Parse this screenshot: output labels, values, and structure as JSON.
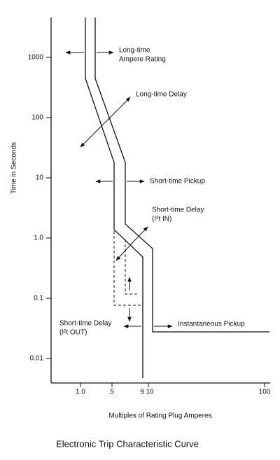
{
  "title": "Electronic Trip Characteristic Curve",
  "axes": {
    "y_label": "Time in Seconds",
    "x_label": "Multiples of Rating Plug Amperes",
    "y_ticks": [
      "1000",
      "100",
      "10",
      "1.0",
      "0.1",
      "0.01"
    ],
    "x_ticks": [
      "1.0",
      "5",
      "9",
      "10",
      "100"
    ]
  },
  "annotations": {
    "long_time_rating": [
      "Long-time",
      "Ampere Rating"
    ],
    "long_time_delay": "Long-time Delay",
    "short_time_pickup": "Short-time Pickup",
    "short_time_delay_in": [
      "Short-time Delay",
      "(I²t IN)"
    ],
    "short_time_delay_out": [
      "Short-time Delay",
      "(I²t OUT)"
    ],
    "instantaneous_pickup": "Instantaneous Pickup"
  }
}
